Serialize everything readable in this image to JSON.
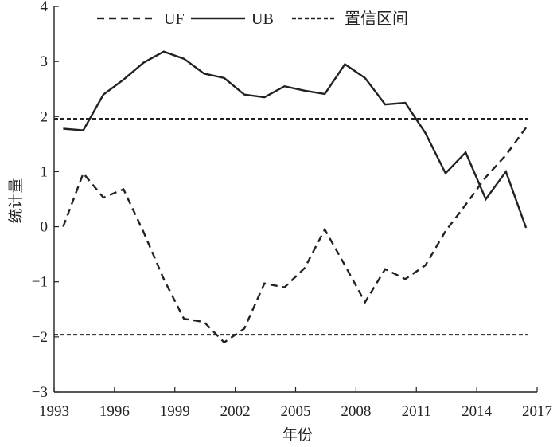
{
  "chart_data": {
    "type": "line",
    "title": "",
    "xlabel": "年份",
    "ylabel": "统计量",
    "xlim": [
      1993,
      2017
    ],
    "ylim": [
      -3,
      4
    ],
    "x_ticks": [
      "1993",
      "1996",
      "1999",
      "2002",
      "2005",
      "2008",
      "2011",
      "2014",
      "2017"
    ],
    "y_ticks": [
      "4",
      "3",
      "2",
      "1",
      "0",
      "−1",
      "−2",
      "−3"
    ],
    "grid": false,
    "legend_position": "top",
    "x": [
      1993,
      1994,
      1995,
      1996,
      1997,
      1998,
      1999,
      2000,
      2001,
      2002,
      2003,
      2004,
      2005,
      2006,
      2007,
      2008,
      2009,
      2010,
      2011,
      2012,
      2013,
      2014,
      2015,
      2016
    ],
    "series": [
      {
        "name": "UF",
        "style": "dashed",
        "color": "#222222",
        "values": [
          0.0,
          0.97,
          0.53,
          0.68,
          -0.1,
          -0.95,
          -1.67,
          -1.73,
          -2.1,
          -1.85,
          -1.03,
          -1.1,
          -0.75,
          -0.05,
          -0.7,
          -1.37,
          -0.77,
          -0.95,
          -0.7,
          -0.08,
          0.4,
          0.9,
          1.3,
          1.8
        ]
      },
      {
        "name": "UB",
        "style": "solid",
        "color": "#222222",
        "values": [
          1.78,
          1.75,
          2.4,
          2.67,
          2.98,
          3.18,
          3.05,
          2.78,
          2.7,
          2.4,
          2.35,
          2.55,
          2.47,
          2.41,
          2.95,
          2.7,
          2.22,
          2.25,
          1.7,
          0.97,
          1.35,
          0.5,
          1.0,
          -0.02
        ]
      },
      {
        "name": "置信区间",
        "style": "dotted",
        "color": "#222222",
        "values_note": "",
        "bounds": [
          1.96,
          -1.96
        ]
      }
    ]
  }
}
